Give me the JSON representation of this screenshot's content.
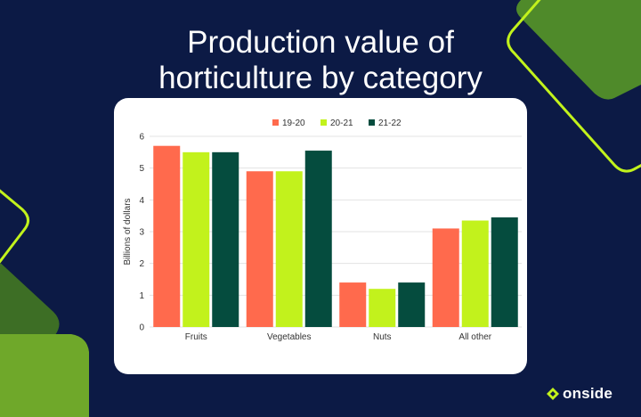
{
  "page": {
    "title_line1": "Production value of",
    "title_line2": "horticulture by category",
    "brand": "onside"
  },
  "colors": {
    "background": "#0c1a45",
    "accent_lime": "#c2f21c",
    "series_19_20": "#ff6a4d",
    "series_20_21": "#c2f21c",
    "series_21_22": "#054c3e"
  },
  "chart_data": {
    "type": "bar",
    "title": "Production value of horticulture by category",
    "ylabel": "Billions of dollars",
    "xlabel": "",
    "ylim": [
      0,
      6
    ],
    "yticks": [
      "0",
      "1",
      "2",
      "3",
      "4",
      "5",
      "6"
    ],
    "categories": [
      "Fruits",
      "Vegetables",
      "Nuts",
      "All other"
    ],
    "series": [
      {
        "name": "19-20",
        "color": "#ff6a4d",
        "values": [
          5.7,
          4.9,
          1.4,
          3.1
        ]
      },
      {
        "name": "20-21",
        "color": "#c2f21c",
        "values": [
          5.5,
          4.9,
          1.2,
          3.35
        ]
      },
      {
        "name": "21-22",
        "color": "#054c3e",
        "values": [
          5.5,
          5.55,
          1.4,
          3.45
        ]
      }
    ],
    "grid": true,
    "legend": "top-center"
  }
}
